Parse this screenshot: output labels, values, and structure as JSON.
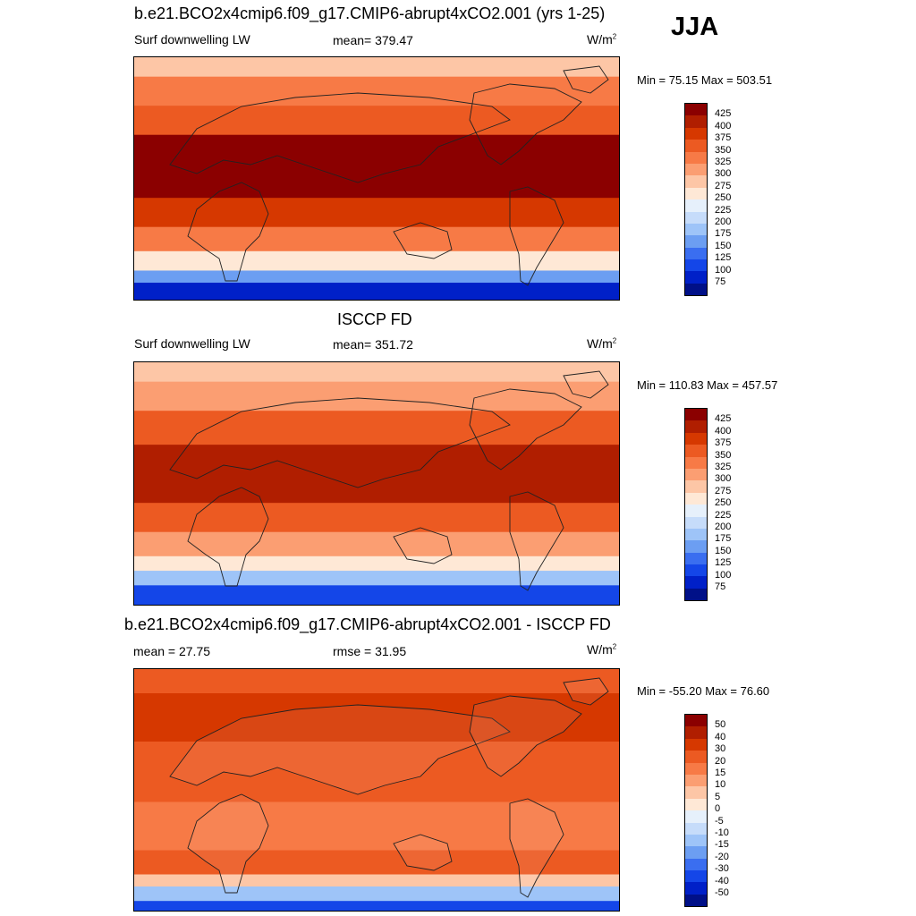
{
  "season": "JJA",
  "panels": [
    {
      "title": "b.e21.BCO2x4cmip6.f09_g17.CMIP6-abrupt4xCO2.001 (yrs 1-25)",
      "left_label": "Surf downwelling LW",
      "center_label": "mean= 379.47",
      "units": "W/m",
      "units_sup": "2",
      "minmax": "Min =  75.15 Max = 503.51",
      "colorbar": {
        "labels": [
          "425",
          "400",
          "375",
          "350",
          "325",
          "300",
          "275",
          "250",
          "225",
          "200",
          "175",
          "150",
          "125",
          "100",
          "75"
        ],
        "colors": [
          "#8b0000",
          "#b01e00",
          "#d63800",
          "#ec5a22",
          "#f77a46",
          "#fb9e72",
          "#fdc6a6",
          "#fee8d6",
          "#e6f0fb",
          "#c6dcfa",
          "#9ec4f8",
          "#6c9ef2",
          "#3a6ef0",
          "#1446e8",
          "#0020c8",
          "#001088"
        ]
      },
      "field": "abs"
    },
    {
      "title": "ISCCP FD",
      "left_label": "Surf downwelling LW",
      "center_label": "mean= 351.72",
      "units": "W/m",
      "units_sup": "2",
      "minmax": "Min = 110.83 Max = 457.57",
      "colorbar": {
        "labels": [
          "425",
          "400",
          "375",
          "350",
          "325",
          "300",
          "275",
          "250",
          "225",
          "200",
          "175",
          "150",
          "125",
          "100",
          "75"
        ],
        "colors": [
          "#8b0000",
          "#b01e00",
          "#d63800",
          "#ec5a22",
          "#f77a46",
          "#fb9e72",
          "#fdc6a6",
          "#fee8d6",
          "#e6f0fb",
          "#c6dcfa",
          "#9ec4f8",
          "#6c9ef2",
          "#3a6ef0",
          "#1446e8",
          "#0020c8",
          "#001088"
        ]
      },
      "field": "abs"
    },
    {
      "title": "b.e21.BCO2x4cmip6.f09_g17.CMIP6-abrupt4xCO2.001 - ISCCP FD",
      "left_label": "mean =  27.75",
      "center_label": "rmse =  31.95",
      "units": "W/m",
      "units_sup": "2",
      "minmax": "Min = -55.20 Max =  76.60",
      "colorbar": {
        "labels": [
          "50",
          "40",
          "30",
          "20",
          "15",
          "10",
          "5",
          "0",
          "-5",
          "-10",
          "-15",
          "-20",
          "-30",
          "-40",
          "-50"
        ],
        "colors": [
          "#8b0000",
          "#b01e00",
          "#d63800",
          "#ec5a22",
          "#f77a46",
          "#fb9e72",
          "#fdc6a6",
          "#fee8d6",
          "#e6f0fb",
          "#c6dcfa",
          "#9ec4f8",
          "#6c9ef2",
          "#3a6ef0",
          "#1446e8",
          "#0020c8",
          "#001088"
        ]
      },
      "field": "diff"
    }
  ]
}
